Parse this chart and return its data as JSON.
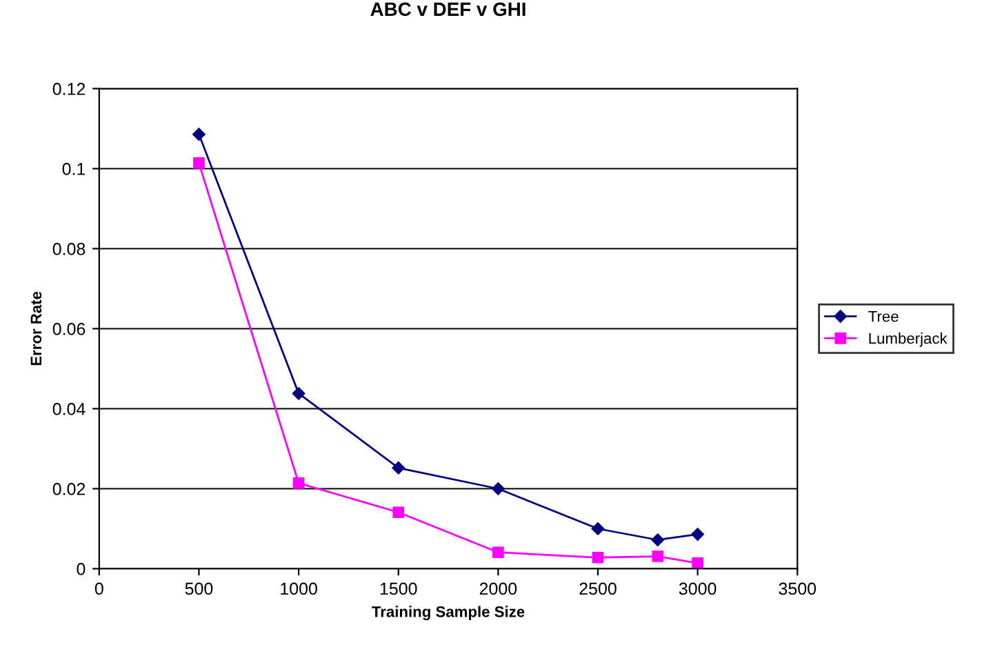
{
  "chart_data": {
    "type": "line",
    "title": "ABC v DEF v GHI",
    "xlabel": "Training Sample Size",
    "ylabel": "Error Rate",
    "x": [
      500,
      1000,
      1500,
      2000,
      2500,
      2800,
      3000
    ],
    "series": [
      {
        "name": "Tree",
        "color": "#000080",
        "marker": "diamond",
        "values": [
          0.1086,
          0.0438,
          0.0252,
          0.02,
          0.01,
          0.0072,
          0.0086
        ]
      },
      {
        "name": "Lumberjack",
        "color": "#ff00ff",
        "marker": "square",
        "values": [
          0.1014,
          0.0214,
          0.0141,
          0.0041,
          0.0028,
          0.0031,
          0.0014
        ]
      }
    ],
    "xlim": [
      0,
      3500
    ],
    "xticks": [
      0,
      500,
      1000,
      1500,
      2000,
      2500,
      3000,
      3500
    ],
    "ylim": [
      0,
      0.12
    ],
    "yticks": [
      0,
      0.02,
      0.04,
      0.06,
      0.08,
      0.1,
      0.12
    ],
    "grid": "y",
    "legend": "right",
    "line_style": "solid"
  }
}
